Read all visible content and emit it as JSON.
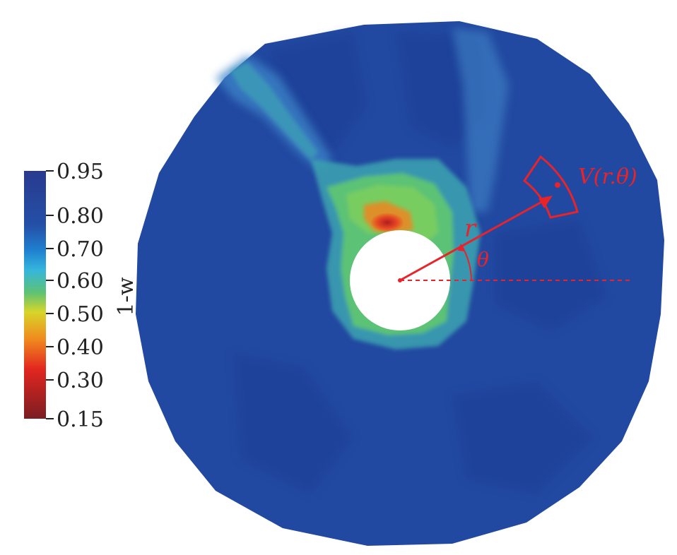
{
  "colorbar": {
    "title": "1-w",
    "ticks": [
      "0.95",
      "0.80",
      "0.70",
      "0.60",
      "0.50",
      "0.40",
      "0.30",
      "0.15"
    ],
    "stops": [
      {
        "offset": 0.0,
        "color": "#283a8e"
      },
      {
        "offset": 0.22,
        "color": "#2450a8"
      },
      {
        "offset": 0.32,
        "color": "#1f80d0"
      },
      {
        "offset": 0.4,
        "color": "#35b6dd"
      },
      {
        "offset": 0.49,
        "color": "#5cc275"
      },
      {
        "offset": 0.57,
        "color": "#d7d52a"
      },
      {
        "offset": 0.68,
        "color": "#f08a1e"
      },
      {
        "offset": 0.8,
        "color": "#e2261f"
      },
      {
        "offset": 1.0,
        "color": "#7a1d22"
      }
    ]
  },
  "annotations": {
    "radius_label": "r",
    "angle_label": "θ",
    "volume_label": "V(r.θ)"
  },
  "colors": {
    "field_background": "#2249a1",
    "field_dark": "#1f3e95",
    "annotation": "#e8232a"
  }
}
